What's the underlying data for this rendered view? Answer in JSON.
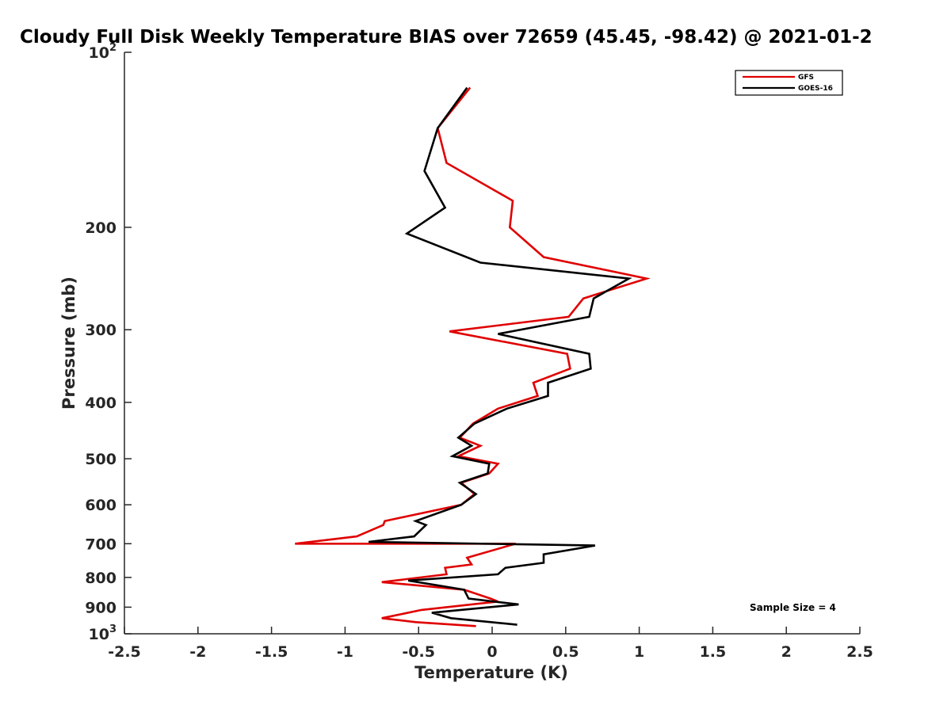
{
  "chart_data": {
    "type": "line",
    "title": "Cloudy Full Disk Weekly Temperature BIAS over 72659 (45.45, -98.42) @ 2021-01-2",
    "xlabel": "Temperature (K)",
    "ylabel": "Pressure (mb)",
    "xlim": [
      -2.5,
      2.5
    ],
    "ylim": [
      100,
      1000
    ],
    "y_scale": "log",
    "y_direction": "reversed",
    "x_ticks": [
      "-2.5",
      "-2",
      "-1.5",
      "-1",
      "-0.5",
      "0",
      "0.5",
      "1",
      "1.5",
      "2",
      "2.5"
    ],
    "x_tick_values": [
      -2.5,
      -2,
      -1.5,
      -1,
      -0.5,
      0,
      0.5,
      1,
      1.5,
      2,
      2.5
    ],
    "y_ticks": [
      {
        "value": 100,
        "base": "10",
        "exp": "2"
      },
      {
        "value": 200,
        "label": "200"
      },
      {
        "value": 300,
        "label": "300"
      },
      {
        "value": 400,
        "label": "400"
      },
      {
        "value": 500,
        "label": "500"
      },
      {
        "value": 600,
        "label": "600"
      },
      {
        "value": 700,
        "label": "700"
      },
      {
        "value": 800,
        "label": "800"
      },
      {
        "value": 900,
        "label": "900"
      },
      {
        "value": 1000,
        "base": "10",
        "exp": "3"
      }
    ],
    "legend_position": "top-right",
    "grid": false,
    "annotation": "Sample Size = 4",
    "series": [
      {
        "name": "GFS",
        "color": "#e00000",
        "x": [
          -0.15,
          -0.37,
          -0.31,
          0.14,
          0.12,
          0.35,
          1.05,
          0.62,
          0.52,
          -0.29,
          0.51,
          0.53,
          0.28,
          0.31,
          0.04,
          -0.13,
          -0.22,
          -0.08,
          -0.23,
          0.04,
          -0.02,
          -0.21,
          -0.12,
          -0.21,
          -0.73,
          -0.74,
          -0.92,
          -1.34,
          0.16,
          -0.17,
          -0.14,
          -0.32,
          -0.31,
          -0.75,
          -0.19,
          -0.01,
          0.04,
          -0.48,
          -0.75,
          -0.52,
          -0.11
        ],
        "y": [
          115,
          135,
          155,
          180,
          200,
          225,
          245,
          265,
          285,
          302,
          330,
          350,
          370,
          390,
          410,
          435,
          460,
          475,
          495,
          510,
          530,
          550,
          575,
          600,
          640,
          650,
          680,
          700,
          700,
          740,
          760,
          770,
          790,
          815,
          840,
          870,
          880,
          910,
          940,
          955,
          970
        ]
      },
      {
        "name": "GOES-16",
        "color": "#000000",
        "x": [
          -0.17,
          -0.37,
          -0.46,
          -0.32,
          -0.58,
          -0.08,
          0.93,
          0.69,
          0.66,
          0.04,
          0.66,
          0.67,
          0.38,
          0.38,
          0.1,
          -0.12,
          -0.23,
          -0.14,
          -0.27,
          -0.02,
          -0.03,
          -0.22,
          -0.11,
          -0.21,
          -0.52,
          -0.45,
          -0.53,
          -0.84,
          0.7,
          0.35,
          0.35,
          0.09,
          0.04,
          -0.57,
          -0.19,
          -0.16,
          0.18,
          -0.41,
          -0.28,
          0.17
        ],
        "y": [
          115,
          135,
          160,
          185,
          205,
          230,
          245,
          265,
          285,
          305,
          330,
          350,
          370,
          390,
          410,
          435,
          460,
          475,
          495,
          510,
          530,
          550,
          575,
          600,
          640,
          650,
          680,
          695,
          705,
          730,
          755,
          770,
          790,
          810,
          840,
          870,
          890,
          920,
          940,
          965
        ]
      }
    ]
  }
}
